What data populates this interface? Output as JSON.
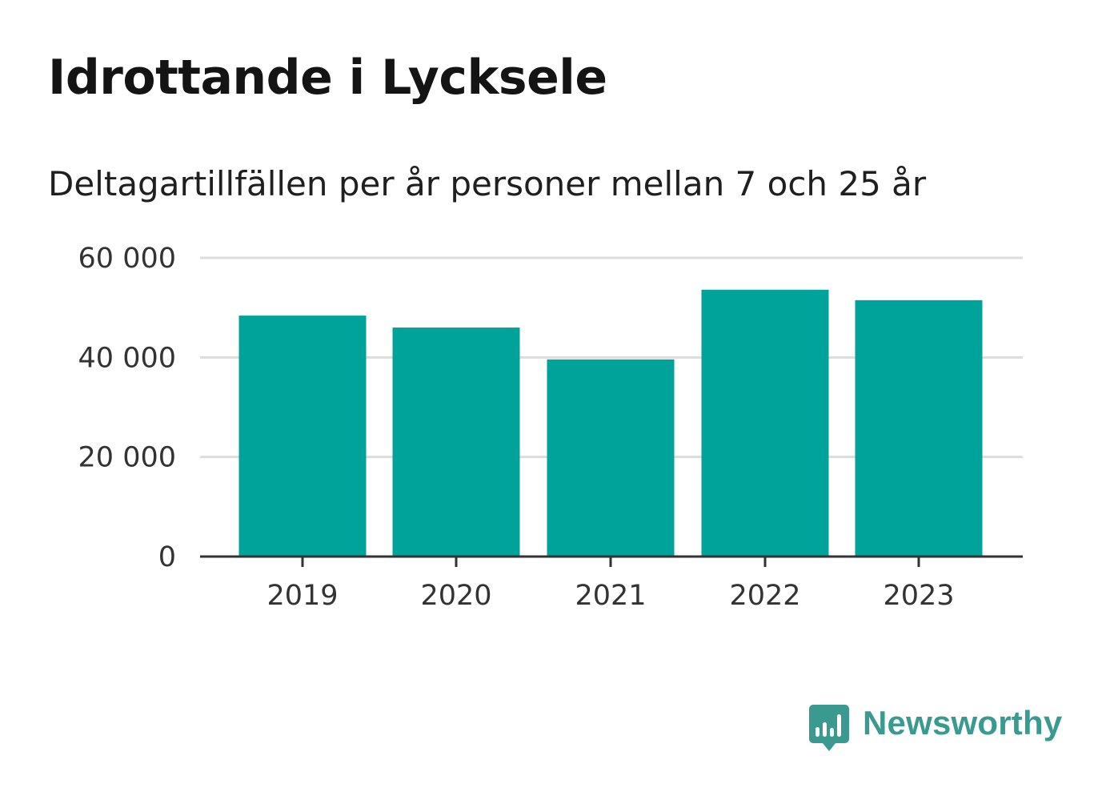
{
  "header": {
    "title": "Idrottande i Lycksele",
    "subtitle": "Deltagartillfällen per år personer mellan 7 och 25 år"
  },
  "brand": {
    "name": "Newsworthy",
    "icon": "newsworthy-logo-icon"
  },
  "colors": {
    "bar": "#00a39a",
    "grid": "#dddddd",
    "axis": "#333333",
    "brand": "#3b9a90"
  },
  "chart_data": {
    "type": "bar",
    "categories": [
      "2019",
      "2020",
      "2021",
      "2022",
      "2023"
    ],
    "values": [
      48400,
      46000,
      39600,
      53600,
      51500
    ],
    "ylim": [
      0,
      60000
    ],
    "yticks": [
      0,
      20000,
      40000,
      60000
    ],
    "ytick_labels": [
      "0",
      "20 000",
      "40 000",
      "60 000"
    ],
    "grid": true,
    "legend": "none"
  }
}
